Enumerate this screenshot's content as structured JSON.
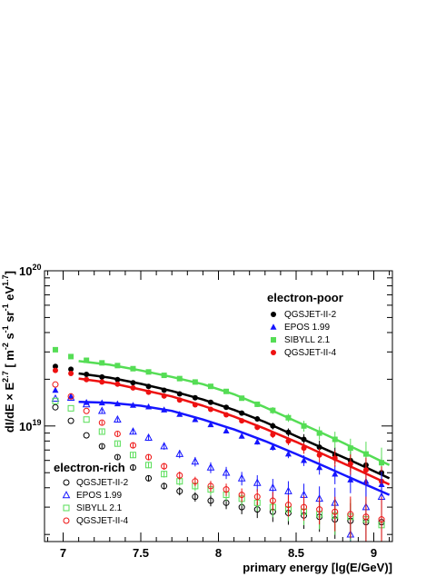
{
  "chart_data": {
    "type": "scatter",
    "x_axis": {
      "label": "primary energy [lg(E/GeV)]",
      "range": [
        6.88,
        9.12
      ],
      "ticks": [
        7,
        7.5,
        8,
        8.5,
        9
      ],
      "tick_labels": [
        "7",
        "7.5",
        "8",
        "8.5",
        "9"
      ]
    },
    "y_axis": {
      "label_main": "dI/dE × E",
      "label_exp": "2.7",
      "label_unit_open": " [ m",
      "label_unit_exp1": "-2",
      "label_unit_mid1": " s",
      "label_unit_exp2": "-1",
      "label_unit_mid2": " sr",
      "label_unit_exp3": "-1",
      "label_unit_mid3": " eV",
      "label_unit_exp4": "1.7",
      "label_unit_close": "]",
      "scale": "log",
      "range": [
        1.8e+18,
        1e+20
      ],
      "major_ticks": [
        {
          "value": 1e+19,
          "base": "10",
          "exp": "19"
        },
        {
          "value": 1e+20,
          "base": "10",
          "exp": "20"
        }
      ]
    },
    "grid": false,
    "legends": [
      {
        "title": "electron-poor",
        "position": "top-right",
        "entries": [
          {
            "label": "QGSJET-II-2",
            "marker": "filled-circle",
            "color": "#000000"
          },
          {
            "label": "EPOS 1.99",
            "marker": "filled-triangle",
            "color": "#1515ff"
          },
          {
            "label": "SIBYLL 2.1",
            "marker": "filled-square",
            "color": "#55dd55"
          },
          {
            "label": "QGSJET-II-4",
            "marker": "filled-circle",
            "color": "#ee1111"
          }
        ]
      },
      {
        "title": "electron-rich",
        "position": "bottom-left",
        "entries": [
          {
            "label": "QGSJET-II-2",
            "marker": "open-circle",
            "color": "#000000"
          },
          {
            "label": "EPOS 1.99",
            "marker": "open-triangle",
            "color": "#1515ff"
          },
          {
            "label": "SIBYLL 2.1",
            "marker": "open-square",
            "color": "#55dd55"
          },
          {
            "label": "QGSJET-II-4",
            "marker": "open-circle",
            "color": "#ee1111"
          }
        ]
      }
    ],
    "x": [
      6.95,
      7.05,
      7.15,
      7.25,
      7.35,
      7.45,
      7.55,
      7.65,
      7.75,
      7.85,
      7.95,
      8.05,
      8.15,
      8.25,
      8.35,
      8.45,
      8.55,
      8.65,
      8.75,
      8.85,
      8.95,
      9.05
    ],
    "series": [
      {
        "name": "QGSJET-II-2",
        "group": "electron-poor",
        "marker": "filled-circle",
        "color": "#000000",
        "values": [
          2.42e+19,
          2.32e+19,
          2.15e+19,
          2.07e+19,
          1.99e+19,
          1.9e+19,
          1.8e+19,
          1.7e+19,
          1.61e+19,
          1.52e+19,
          1.42e+19,
          1.32e+19,
          1.21e+19,
          1.11e+19,
          1e+19,
          9.1e+18,
          8.2e+18,
          7.3e+18,
          6.5e+18,
          6e+18,
          5.6e+18,
          5e+18
        ],
        "err_frac": [
          0.01,
          0.01,
          0.01,
          0.01,
          0.01,
          0.01,
          0.015,
          0.015,
          0.02,
          0.02,
          0.025,
          0.03,
          0.035,
          0.04,
          0.05,
          0.06,
          0.08,
          0.1,
          0.12,
          0.15,
          0.2,
          0.25
        ]
      },
      {
        "name": "EPOS 1.99",
        "group": "electron-poor",
        "marker": "filled-triangle",
        "color": "#1515ff",
        "values": [
          1.7e+19,
          1.55e+19,
          1.42e+19,
          1.41e+19,
          1.39e+19,
          1.36e+19,
          1.33e+19,
          1.27e+19,
          1.19e+19,
          1.1e+19,
          1.02e+19,
          9.3e+18,
          8.6e+18,
          7.9e+18,
          7.3e+18,
          6.6e+18,
          6e+18,
          5.4e+18,
          4.9e+18,
          4.5e+18,
          4.4e+18,
          4.2e+18
        ],
        "err_frac": [
          0.01,
          0.01,
          0.01,
          0.01,
          0.01,
          0.012,
          0.015,
          0.015,
          0.02,
          0.022,
          0.025,
          0.03,
          0.035,
          0.04,
          0.05,
          0.06,
          0.08,
          0.1,
          0.14,
          0.18,
          0.24,
          0.3
        ]
      },
      {
        "name": "SIBYLL 2.1",
        "group": "electron-poor",
        "marker": "filled-square",
        "color": "#55dd55",
        "values": [
          3.1e+19,
          2.8e+19,
          2.65e+19,
          2.55e+19,
          2.45e+19,
          2.34e+19,
          2.23e+19,
          2.12e+19,
          2.02e+19,
          1.92e+19,
          1.8e+19,
          1.67e+19,
          1.51e+19,
          1.38e+19,
          1.26e+19,
          1.13e+19,
          1e+19,
          9e+18,
          8.2e+18,
          7.2e+18,
          6.6e+18,
          5.8e+18
        ],
        "err_frac": [
          0.01,
          0.01,
          0.01,
          0.01,
          0.01,
          0.012,
          0.015,
          0.015,
          0.02,
          0.02,
          0.025,
          0.03,
          0.035,
          0.04,
          0.05,
          0.06,
          0.08,
          0.1,
          0.12,
          0.15,
          0.2,
          0.25
        ]
      },
      {
        "name": "QGSJET-II-4",
        "group": "electron-poor",
        "marker": "filled-circle",
        "color": "#ee1111",
        "values": [
          2.28e+19,
          2.18e+19,
          1.99e+19,
          1.92e+19,
          1.86e+19,
          1.76e+19,
          1.65e+19,
          1.56e+19,
          1.47e+19,
          1.37e+19,
          1.28e+19,
          1.18e+19,
          1.08e+19,
          9.8e+18,
          8.8e+18,
          8e+18,
          7.2e+18,
          6.5e+18,
          6.2e+18,
          5.7e+18,
          5.2e+18,
          4.4e+18
        ],
        "err_frac": [
          0.01,
          0.01,
          0.01,
          0.01,
          0.01,
          0.012,
          0.015,
          0.015,
          0.02,
          0.02,
          0.025,
          0.03,
          0.035,
          0.04,
          0.05,
          0.06,
          0.08,
          0.1,
          0.12,
          0.15,
          0.2,
          0.25
        ]
      },
      {
        "name": "QGSJET-II-2",
        "group": "electron-rich",
        "marker": "open-circle",
        "color": "#000000",
        "values": [
          1.32e+19,
          1.08e+19,
          8.7e+18,
          7.4e+18,
          6.3e+18,
          5.4e+18,
          4.6e+18,
          4.1e+18,
          3.8e+18,
          3.5e+18,
          3.3e+18,
          3.2e+18,
          3e+18,
          2.9e+18,
          2.8e+18,
          2.75e+18,
          2.65e+18,
          2.6e+18,
          2.5e+18,
          2.45e+18,
          2.4e+18,
          2.4e+18
        ],
        "err_frac": [
          0.02,
          0.02,
          0.025,
          0.03,
          0.03,
          0.04,
          0.045,
          0.05,
          0.06,
          0.07,
          0.08,
          0.09,
          0.1,
          0.12,
          0.14,
          0.16,
          0.18,
          0.2,
          0.25,
          0.3,
          0.35,
          0.4
        ]
      },
      {
        "name": "EPOS 1.99",
        "group": "electron-rich",
        "marker": "open-triangle",
        "color": "#1515ff",
        "values": [
          1.5e+19,
          1.52e+19,
          1.38e+19,
          1.25e+19,
          1.1e+19,
          9.2e+18,
          8.4e+18,
          7.4e+18,
          6.6e+18,
          5.9e+18,
          5.4e+18,
          5e+18,
          4.6e+18,
          4.3e+18,
          4e+18,
          3.8e+18,
          3.6e+18,
          3.4e+18,
          3.2e+18,
          2e+18,
          3e+18,
          3.5e+18
        ],
        "err_frac": [
          0.02,
          0.02,
          0.025,
          0.03,
          0.03,
          0.04,
          0.045,
          0.05,
          0.06,
          0.07,
          0.08,
          0.09,
          0.1,
          0.12,
          0.14,
          0.16,
          0.18,
          0.2,
          0.25,
          0.45,
          0.4,
          0.45
        ]
      },
      {
        "name": "SIBYLL 2.1",
        "group": "electron-rich",
        "marker": "open-square",
        "color": "#55dd55",
        "values": [
          1.45e+19,
          1.3e+19,
          1.1e+19,
          9.2e+18,
          7.7e+18,
          6.5e+18,
          5.6e+18,
          4.9e+18,
          4.4e+18,
          4.1e+18,
          3.9e+18,
          3.6e+18,
          3.4e+18,
          3.2e+18,
          3e+18,
          2.9e+18,
          2.8e+18,
          2.7e+18,
          2.65e+18,
          2.6e+18,
          2.5e+18,
          2.3e+18
        ],
        "err_frac": [
          0.02,
          0.02,
          0.025,
          0.03,
          0.03,
          0.04,
          0.045,
          0.05,
          0.06,
          0.07,
          0.08,
          0.09,
          0.1,
          0.12,
          0.14,
          0.16,
          0.18,
          0.2,
          0.25,
          0.3,
          0.35,
          0.4
        ]
      },
      {
        "name": "QGSJET-II-4",
        "group": "electron-rich",
        "marker": "open-circle",
        "color": "#ee1111",
        "values": [
          1.85e+19,
          1.55e+19,
          1.25e+19,
          1.05e+19,
          8.9e+18,
          7.5e+18,
          6.3e+18,
          5.5e+18,
          4.8e+18,
          4.4e+18,
          4.1e+18,
          3.9e+18,
          3.6e+18,
          3.5e+18,
          3.3e+18,
          3.1e+18,
          3e+18,
          2.9e+18,
          2.8e+18,
          2.7e+18,
          2.6e+18,
          2.5e+18
        ],
        "err_frac": [
          0.02,
          0.02,
          0.025,
          0.03,
          0.03,
          0.04,
          0.045,
          0.05,
          0.06,
          0.07,
          0.08,
          0.09,
          0.1,
          0.12,
          0.14,
          0.16,
          0.18,
          0.2,
          0.25,
          0.3,
          0.35,
          0.4
        ]
      }
    ],
    "fits": [
      {
        "series": "SIBYLL 2.1",
        "color": "#55dd55",
        "x": [
          7.1,
          7.3,
          7.5,
          7.7,
          7.9,
          8.1,
          8.3,
          8.5,
          8.7,
          8.9,
          9.1
        ],
        "values": [
          2.62e+19,
          2.48e+19,
          2.28e+19,
          2.07e+19,
          1.86e+19,
          1.6e+19,
          1.32e+19,
          1.07e+19,
          8.7e+18,
          7e+18,
          5.6e+18
        ]
      },
      {
        "series": "QGSJET-II-2",
        "color": "#000000",
        "x": [
          7.1,
          7.3,
          7.5,
          7.7,
          7.9,
          8.1,
          8.3,
          8.5,
          8.7,
          8.9,
          9.1
        ],
        "values": [
          2.18e+19,
          2.05e+19,
          1.87e+19,
          1.68e+19,
          1.48e+19,
          1.27e+19,
          1.06e+19,
          8.6e+18,
          7e+18,
          5.7e+18,
          4.6e+18
        ]
      },
      {
        "series": "QGSJET-II-4",
        "color": "#ee1111",
        "x": [
          7.1,
          7.3,
          7.5,
          7.7,
          7.9,
          8.1,
          8.3,
          8.5,
          8.7,
          8.9,
          9.1
        ],
        "values": [
          2.02e+19,
          1.9e+19,
          1.72e+19,
          1.55e+19,
          1.35e+19,
          1.15e+19,
          9.6e+18,
          7.9e+18,
          6.4e+18,
          5.2e+18,
          4.2e+18
        ]
      },
      {
        "series": "EPOS 1.99",
        "color": "#1515ff",
        "x": [
          7.1,
          7.3,
          7.5,
          7.7,
          7.9,
          8.1,
          8.3,
          8.5,
          8.7,
          8.9,
          9.1
        ],
        "values": [
          1.43e+19,
          1.41e+19,
          1.35e+19,
          1.25e+19,
          1.1e+19,
          9.5e+18,
          8e+18,
          6.6e+18,
          5.4e+18,
          4.4e+18,
          3.6e+18
        ]
      }
    ]
  }
}
